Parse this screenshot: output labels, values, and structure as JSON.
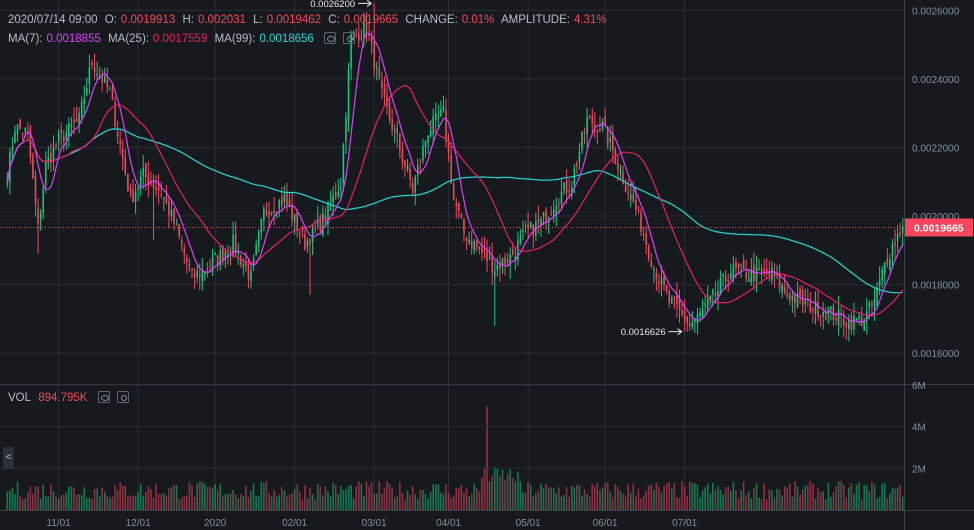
{
  "header": {
    "datetime": "2020/07/14 09:00",
    "open_label": "O:",
    "open": "0.0019913",
    "high_label": "H:",
    "high": "0.002031",
    "low_label": "L:",
    "low": "0.0019462",
    "close_label": "C:",
    "close": "0.0019665",
    "change_label": "CHANGE:",
    "change": "0.01%",
    "amplitude_label": "AMPLITUDE:",
    "amplitude": "4.31%"
  },
  "ma": {
    "ma7_label": "MA(7):",
    "ma7": "0.0018855",
    "ma25_label": "MA(25):",
    "ma25": "0.0017559",
    "ma99_label": "MA(99):",
    "ma99": "0.0018656"
  },
  "vol": {
    "label": "VOL",
    "value": "894.795K"
  },
  "collapse_glyph": "<",
  "colors": {
    "up": "#0ecb81",
    "down": "#f6465d",
    "ma7": "#e040fb",
    "ma25": "#e91e63",
    "ma99": "#23d9d9",
    "last_price_bg": "#f6465d"
  },
  "chart_data": {
    "type": "candlestick",
    "ylim": [
      0.00151,
      0.00263
    ],
    "y_ticks": [
      "0.0016000",
      "0.0018000",
      "0.0020000",
      "0.0022000",
      "0.0024000",
      "0.0026000"
    ],
    "x_ticks": [
      "11/01",
      "12/01",
      "2020",
      "02/01",
      "03/01",
      "04/01",
      "05/01",
      "06/01",
      "07/01"
    ],
    "vol_ticks": [
      "2M",
      "4M",
      "6M"
    ],
    "vol_ylim": [
      0,
      6000000
    ],
    "last_price": "0.0019665",
    "last_price_value": 0.0019665,
    "max_marker": {
      "label": "0.0026200",
      "value": 0.00262
    },
    "min_marker": {
      "label": "0.0016626",
      "value": 0.0016626
    },
    "close_anchors": [
      [
        0,
        0.00212
      ],
      [
        3,
        0.00226
      ],
      [
        8,
        0.00224
      ],
      [
        12,
        0.00196
      ],
      [
        15,
        0.00215
      ],
      [
        20,
        0.00222
      ],
      [
        28,
        0.00228
      ],
      [
        33,
        0.00245
      ],
      [
        40,
        0.00236
      ],
      [
        48,
        0.00205
      ],
      [
        53,
        0.00212
      ],
      [
        60,
        0.00207
      ],
      [
        65,
        0.00198
      ],
      [
        72,
        0.00182
      ],
      [
        78,
        0.00185
      ],
      [
        88,
        0.00192
      ],
      [
        95,
        0.00182
      ],
      [
        100,
        0.00201
      ],
      [
        108,
        0.00205
      ],
      [
        116,
        0.00192
      ],
      [
        124,
        0.002
      ],
      [
        130,
        0.0021
      ],
      [
        134,
        0.00252
      ],
      [
        140,
        0.00255
      ],
      [
        146,
        0.00235
      ],
      [
        152,
        0.00222
      ],
      [
        158,
        0.00208
      ],
      [
        164,
        0.00225
      ],
      [
        170,
        0.0023
      ],
      [
        174,
        0.00205
      ],
      [
        178,
        0.00195
      ],
      [
        184,
        0.0019
      ],
      [
        190,
        0.00185
      ],
      [
        196,
        0.00188
      ],
      [
        202,
        0.00195
      ],
      [
        208,
        0.00198
      ],
      [
        214,
        0.00205
      ],
      [
        220,
        0.0021
      ],
      [
        226,
        0.00228
      ],
      [
        232,
        0.00226
      ],
      [
        236,
        0.00219
      ],
      [
        240,
        0.00211
      ],
      [
        246,
        0.002
      ],
      [
        252,
        0.00185
      ],
      [
        258,
        0.00175
      ],
      [
        262,
        0.00172
      ],
      [
        266,
        0.00168
      ],
      [
        270,
        0.00171
      ],
      [
        276,
        0.00177
      ],
      [
        282,
        0.00184
      ],
      [
        290,
        0.00183
      ],
      [
        298,
        0.00183
      ],
      [
        304,
        0.00177
      ],
      [
        312,
        0.00174
      ],
      [
        320,
        0.00172
      ],
      [
        328,
        0.00169
      ],
      [
        334,
        0.0017
      ],
      [
        338,
        0.00175
      ],
      [
        342,
        0.00186
      ],
      [
        346,
        0.00193
      ],
      [
        349,
        0.00197
      ]
    ],
    "special_candles": [
      {
        "i": 12,
        "low": 0.00189
      },
      {
        "i": 57,
        "low": 0.00193
      },
      {
        "i": 118,
        "low": 0.00177
      },
      {
        "i": 143,
        "high": 0.00262
      },
      {
        "i": 190,
        "low": 0.00168
      },
      {
        "i": 264,
        "low": 0.0016626
      }
    ],
    "volume_spike": {
      "i": 187,
      "value": 4950000
    }
  }
}
